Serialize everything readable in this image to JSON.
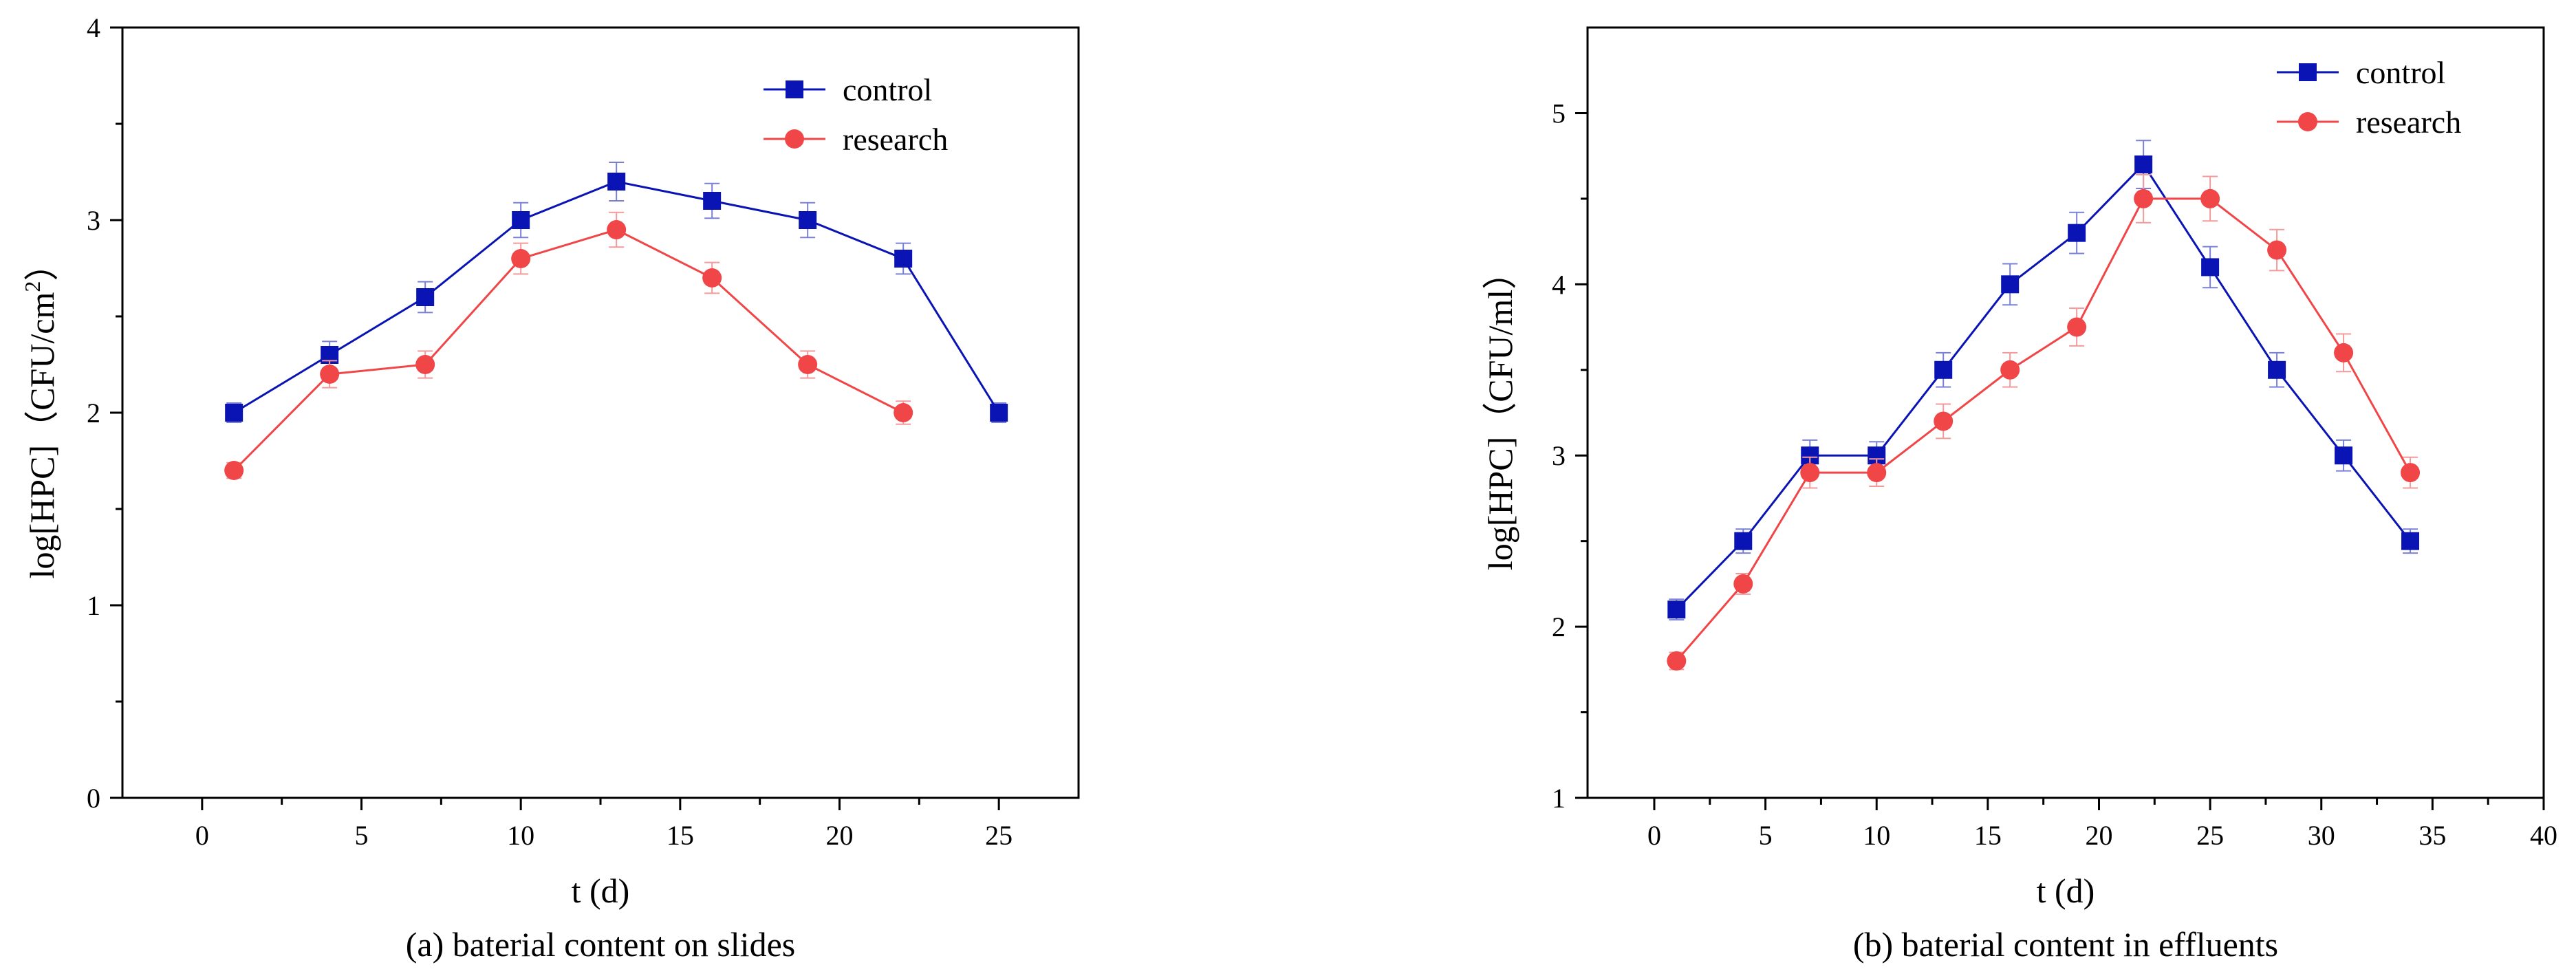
{
  "chart_data": [
    {
      "type": "line",
      "caption": "(a) baterial content on slides",
      "xlabel": "t (d)",
      "ylabel": "log[HPC]（CFU/cm",
      "ylabel_sup": "2",
      "ylabel_end": "）",
      "xlim": [
        -2.5,
        27.5
      ],
      "ylim": [
        0,
        4
      ],
      "xticks": [
        0,
        5,
        10,
        15,
        20,
        25
      ],
      "yticks": [
        0,
        1,
        2,
        3,
        4
      ],
      "legend_position": "top-right",
      "series": [
        {
          "name": "control",
          "color": "#0a14b4",
          "marker": "square",
          "x": [
            1,
            4,
            7,
            10,
            13,
            16,
            19,
            22,
            25
          ],
          "y": [
            2.0,
            2.3,
            2.6,
            3.0,
            3.2,
            3.1,
            3.0,
            2.8,
            2.0
          ],
          "err": [
            0.05,
            0.07,
            0.08,
            0.09,
            0.1,
            0.09,
            0.09,
            0.08,
            0.05
          ]
        },
        {
          "name": "research",
          "color": "#f04648",
          "marker": "circle",
          "x": [
            1,
            4,
            7,
            10,
            13,
            16,
            19,
            22
          ],
          "y": [
            1.7,
            2.2,
            2.25,
            2.8,
            2.95,
            2.7,
            2.25,
            2.0
          ],
          "err": [
            0.04,
            0.07,
            0.07,
            0.08,
            0.09,
            0.08,
            0.07,
            0.06
          ]
        }
      ]
    },
    {
      "type": "line",
      "caption": "(b) baterial content in effluents",
      "xlabel": "t (d)",
      "ylabel": "log[HPC]（CFU/ml）",
      "ylabel_sup": "",
      "ylabel_end": "",
      "xlim": [
        -3,
        40
      ],
      "ylim": [
        1,
        5.5
      ],
      "xticks": [
        0,
        5,
        10,
        15,
        20,
        25,
        30,
        35,
        40
      ],
      "yticks": [
        1,
        2,
        3,
        4,
        5
      ],
      "legend_position": "top-right",
      "series": [
        {
          "name": "control",
          "color": "#0a14b4",
          "marker": "square",
          "x": [
            1,
            4,
            7,
            10,
            13,
            16,
            19,
            22,
            25,
            28,
            31,
            34
          ],
          "y": [
            2.1,
            2.5,
            3.0,
            3.0,
            3.5,
            4.0,
            4.3,
            4.7,
            4.1,
            3.5,
            3.0,
            2.5
          ],
          "err": [
            0.06,
            0.07,
            0.09,
            0.08,
            0.1,
            0.12,
            0.12,
            0.14,
            0.12,
            0.1,
            0.09,
            0.07
          ]
        },
        {
          "name": "research",
          "color": "#f04648",
          "marker": "circle",
          "x": [
            1,
            4,
            7,
            10,
            13,
            16,
            19,
            22,
            25,
            28,
            31,
            34
          ],
          "y": [
            1.8,
            2.25,
            2.9,
            2.9,
            3.2,
            3.5,
            3.75,
            4.5,
            4.5,
            4.2,
            3.6,
            2.9
          ],
          "err": [
            0.05,
            0.06,
            0.09,
            0.08,
            0.1,
            0.1,
            0.11,
            0.14,
            0.13,
            0.12,
            0.11,
            0.09
          ]
        }
      ]
    }
  ]
}
